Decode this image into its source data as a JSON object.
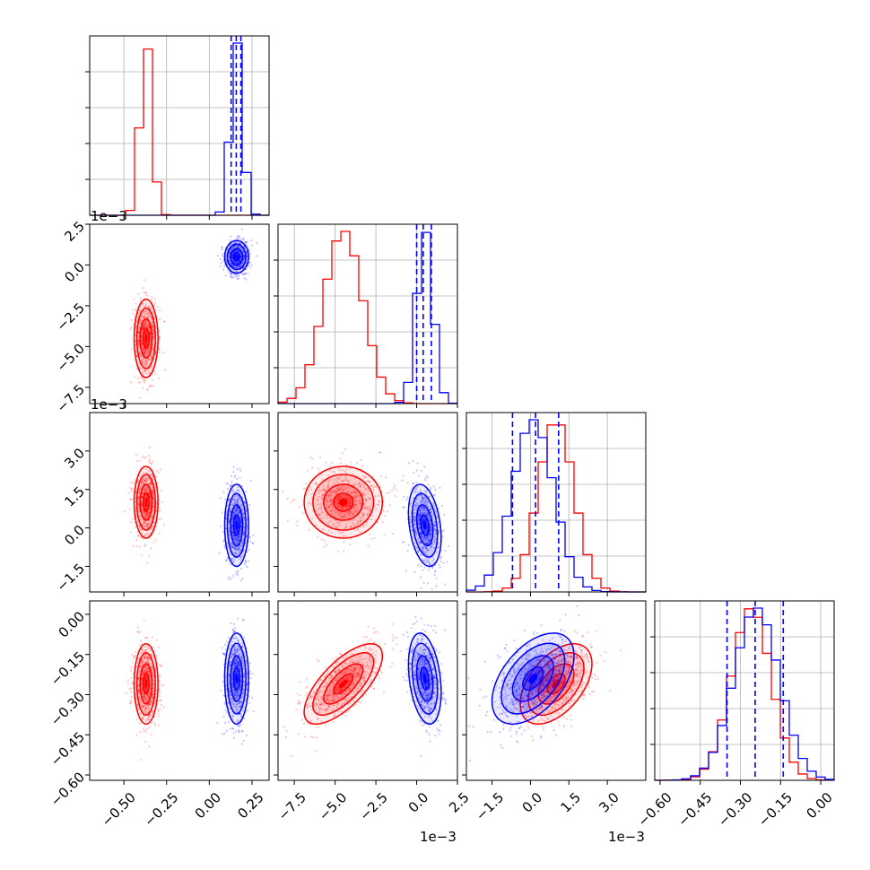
{
  "figure": {
    "axis_multiplier_labels": {
      "row1_y": "1e−3",
      "row2_y": "1e−3",
      "col1_x": "1e−3",
      "col2_x": "1e−3"
    }
  },
  "colors": {
    "series_a": "#ff0000",
    "series_b": "#0000ff",
    "grid": "#b0b0b0"
  },
  "chart_data": {
    "type": "corner",
    "parameters": [
      {
        "range": [
          -0.7,
          0.35
        ],
        "ticks": [
          -0.5,
          -0.25,
          0.0,
          0.25
        ],
        "tick_labels": [
          "−0.50",
          "−0.25",
          "0.00",
          "0.25"
        ]
      },
      {
        "range": [
          -0.0085,
          0.0025
        ],
        "ticks": [
          -0.0075,
          -0.005,
          -0.0025,
          0.0,
          0.0025
        ],
        "tick_labels": [
          "−7.5",
          "−5.0",
          "−2.5",
          "0.0",
          "2.5"
        ]
      },
      {
        "range": [
          -0.0025,
          0.0045
        ],
        "ticks": [
          -0.0015,
          0.0,
          0.0015,
          0.003
        ],
        "tick_labels": [
          "−1.5",
          "0.0",
          "1.5",
          "3.0"
        ]
      },
      {
        "range": [
          -0.62,
          0.05
        ],
        "ticks": [
          -0.6,
          -0.45,
          -0.3,
          -0.15,
          0.0
        ],
        "tick_labels": [
          "−0.60",
          "−0.45",
          "−0.30",
          "−0.15",
          "0.00"
        ]
      }
    ],
    "series": [
      {
        "color": "#ff0000",
        "mean": [
          -0.37,
          -0.0045,
          0.001,
          -0.26
        ],
        "sd": [
          0.035,
          0.0012,
          0.0007,
          0.075
        ],
        "corr": {
          "1-3": 0.7,
          "2-3": 0.5
        }
      },
      {
        "color": "#0000ff",
        "mean": [
          0.16,
          0.0005,
          0.0001,
          -0.24
        ],
        "sd": [
          0.035,
          0.0005,
          0.0008,
          0.085
        ],
        "corr": {
          "1-2": -0.3,
          "1-3": -0.3,
          "2-3": 0.5
        }
      }
    ],
    "quantile_lines": {
      "color": "#0000ff",
      "param0": [
        0.128,
        0.158,
        0.185
      ],
      "param1": [
        0.0,
        0.0004,
        0.0009
      ],
      "param2": [
        -0.0007,
        0.0002,
        0.0011
      ],
      "param3": [
        -0.35,
        -0.245,
        -0.14
      ]
    },
    "grid": true
  }
}
